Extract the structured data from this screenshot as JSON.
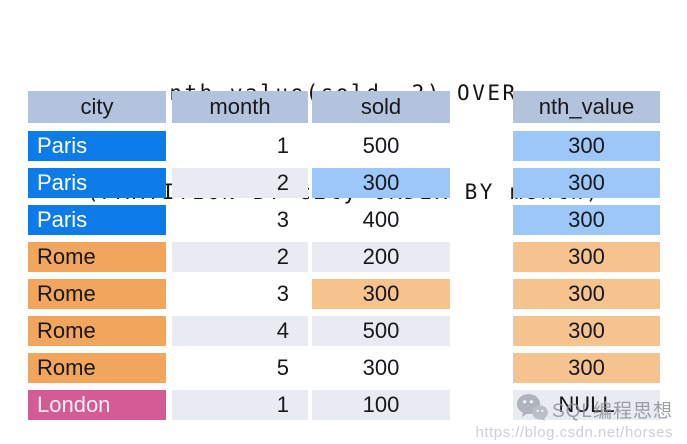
{
  "title": {
    "line1": "nth_value(sold, 2) OVER",
    "line2": "(PARTITION BY city ORDER BY month)"
  },
  "table": {
    "headers": [
      "city",
      "month",
      "sold"
    ],
    "result_header": "nth_value",
    "rows": [
      {
        "city": "Paris",
        "month": "1",
        "sold": "500",
        "nth": "300",
        "group": "paris",
        "alt": false,
        "sold_highlight": false
      },
      {
        "city": "Paris",
        "month": "2",
        "sold": "300",
        "nth": "300",
        "group": "paris",
        "alt": true,
        "sold_highlight": true
      },
      {
        "city": "Paris",
        "month": "3",
        "sold": "400",
        "nth": "300",
        "group": "paris",
        "alt": false,
        "sold_highlight": false
      },
      {
        "city": "Rome",
        "month": "2",
        "sold": "200",
        "nth": "300",
        "group": "rome",
        "alt": true,
        "sold_highlight": false
      },
      {
        "city": "Rome",
        "month": "3",
        "sold": "300",
        "nth": "300",
        "group": "rome",
        "alt": false,
        "sold_highlight": true
      },
      {
        "city": "Rome",
        "month": "4",
        "sold": "500",
        "nth": "300",
        "group": "rome",
        "alt": true,
        "sold_highlight": false
      },
      {
        "city": "Rome",
        "month": "5",
        "sold": "300",
        "nth": "300",
        "group": "rome",
        "alt": false,
        "sold_highlight": false
      },
      {
        "city": "London",
        "month": "1",
        "sold": "100",
        "nth": "NULL",
        "group": "london",
        "alt": true,
        "sold_highlight": false
      }
    ]
  },
  "watermark": {
    "icon": "wechat-icon",
    "brand": "SQL编程思想",
    "url": "https://blog.csdn.net/horses"
  },
  "colors": {
    "header_bg": "#b3c3dd",
    "paris_bg": "#0d7ce8",
    "rome_bg": "#f2a55c",
    "london_bg": "#d45c96",
    "blue_highlight": "#9cc7f8",
    "orange_highlight": "#f6c28e",
    "alt_row_bg": "#e9ebf2",
    "title_text": "#141414"
  }
}
